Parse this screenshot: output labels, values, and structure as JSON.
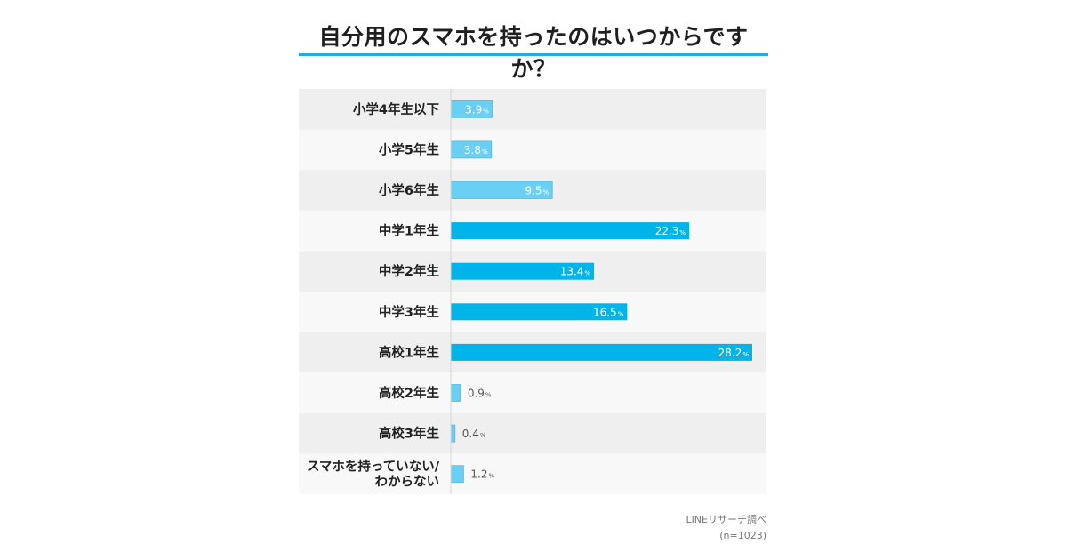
{
  "title": "自分用のスマホを持ったのはいつからですか？",
  "source": {
    "line1": "LINEリサーチ調べ",
    "line2": "(n=1023)"
  },
  "colors": {
    "accent": "#27a9e1",
    "bar_dark": "#00b4ea",
    "bar_light": "#69d0f4",
    "row_odd": "#efefef",
    "row_even": "#f8f8f8"
  },
  "chart_data": {
    "type": "bar",
    "orientation": "horizontal",
    "unit": "%",
    "categories": [
      [
        "小学4年生以下"
      ],
      [
        "小学5年生"
      ],
      [
        "小学6年生"
      ],
      [
        "中学1年生"
      ],
      [
        "中学2年生"
      ],
      [
        "中学3年生"
      ],
      [
        "高校1年生"
      ],
      [
        "高校2年生"
      ],
      [
        "高校3年生"
      ],
      [
        "スマホを持っていない/",
        "わからない"
      ]
    ],
    "values": [
      3.9,
      3.8,
      9.5,
      22.3,
      13.4,
      16.5,
      28.2,
      0.9,
      0.4,
      1.2
    ],
    "highlight": [
      false,
      false,
      false,
      true,
      true,
      true,
      true,
      false,
      false,
      false
    ],
    "xlim": [
      0,
      28.2
    ],
    "grid": false,
    "legend": "none"
  }
}
